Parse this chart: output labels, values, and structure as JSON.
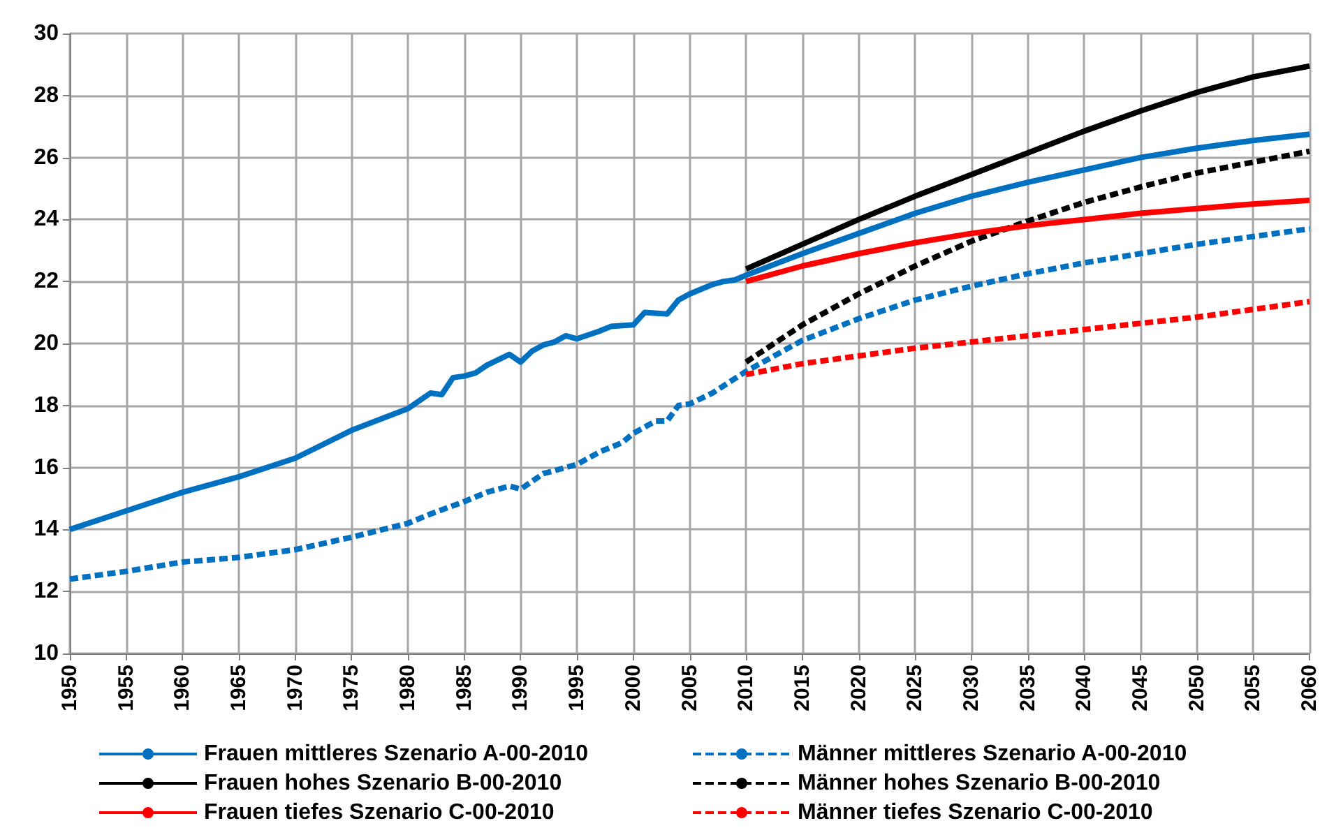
{
  "chart_data": {
    "type": "line",
    "xlim": [
      1950,
      2060
    ],
    "xticks": [
      1950,
      1955,
      1960,
      1965,
      1970,
      1975,
      1980,
      1985,
      1990,
      1995,
      2000,
      2005,
      2010,
      2015,
      2020,
      2025,
      2030,
      2035,
      2040,
      2045,
      2050,
      2055,
      2060
    ],
    "ylim": [
      10,
      30
    ],
    "yticks": [
      10,
      12,
      14,
      16,
      18,
      20,
      22,
      24,
      26,
      28,
      30
    ],
    "grid": true,
    "legend": "bottom",
    "marker": "none",
    "series": [
      {
        "name": "Frauen mittleres Szenario A-00-2010",
        "color": "#0070c0",
        "line_style": "solid",
        "x": [
          1950,
          1955,
          1960,
          1965,
          1970,
          1975,
          1980,
          1982,
          1983,
          1984,
          1985,
          1986,
          1987,
          1989,
          1990,
          1991,
          1992,
          1993,
          1994,
          1995,
          1997,
          1998,
          2000,
          2001,
          2003,
          2004,
          2005,
          2007,
          2008,
          2009,
          2010,
          2015,
          2020,
          2025,
          2030,
          2035,
          2040,
          2045,
          2050,
          2055,
          2060
        ],
        "values": [
          14.0,
          14.6,
          15.2,
          15.7,
          16.3,
          17.2,
          17.9,
          18.4,
          18.35,
          18.9,
          18.95,
          19.05,
          19.3,
          19.65,
          19.4,
          19.75,
          19.95,
          20.05,
          20.25,
          20.15,
          20.4,
          20.55,
          20.6,
          21.0,
          20.95,
          21.4,
          21.6,
          21.9,
          22.0,
          22.05,
          22.2,
          22.9,
          23.55,
          24.2,
          24.75,
          25.2,
          25.6,
          26.0,
          26.3,
          26.55,
          26.75
        ]
      },
      {
        "name": "Männer mittleres Szenario A-00-2010",
        "color": "#0070c0",
        "line_style": "dashed",
        "x": [
          1950,
          1955,
          1960,
          1965,
          1970,
          1975,
          1980,
          1982,
          1985,
          1987,
          1989,
          1990,
          1992,
          1995,
          1997,
          1999,
          2000,
          2002,
          2003,
          2004,
          2005,
          2007,
          2010,
          2015,
          2020,
          2025,
          2030,
          2035,
          2040,
          2045,
          2050,
          2055,
          2060
        ],
        "values": [
          12.4,
          12.65,
          12.95,
          13.1,
          13.35,
          13.75,
          14.2,
          14.5,
          14.9,
          15.2,
          15.4,
          15.3,
          15.8,
          16.1,
          16.5,
          16.8,
          17.1,
          17.5,
          17.5,
          18.0,
          18.05,
          18.4,
          19.1,
          20.1,
          20.8,
          21.4,
          21.85,
          22.25,
          22.6,
          22.9,
          23.2,
          23.45,
          23.7
        ]
      },
      {
        "name": "Frauen hohes Szenario B-00-2010",
        "color": "#000000",
        "line_style": "solid",
        "x": [
          2010,
          2015,
          2020,
          2025,
          2030,
          2035,
          2040,
          2045,
          2050,
          2055,
          2060
        ],
        "values": [
          22.4,
          23.2,
          24.0,
          24.75,
          25.45,
          26.15,
          26.85,
          27.5,
          28.1,
          28.6,
          28.95
        ]
      },
      {
        "name": "Männer hohes Szenario B-00-2010",
        "color": "#000000",
        "line_style": "dashed",
        "x": [
          2010,
          2015,
          2020,
          2025,
          2030,
          2035,
          2040,
          2045,
          2050,
          2055,
          2060
        ],
        "values": [
          19.4,
          20.6,
          21.6,
          22.5,
          23.3,
          23.95,
          24.55,
          25.05,
          25.5,
          25.85,
          26.2
        ]
      },
      {
        "name": "Frauen tiefes Szenario C-00-2010",
        "color": "#ff0000",
        "line_style": "solid",
        "x": [
          2010,
          2015,
          2020,
          2025,
          2030,
          2035,
          2040,
          2045,
          2050,
          2055,
          2060
        ],
        "values": [
          22.0,
          22.5,
          22.9,
          23.25,
          23.55,
          23.8,
          24.0,
          24.2,
          24.35,
          24.5,
          24.62
        ]
      },
      {
        "name": "Männer tiefes Szenario C-00-2010",
        "color": "#ff0000",
        "line_style": "dashed",
        "x": [
          2010,
          2015,
          2020,
          2025,
          2030,
          2035,
          2040,
          2045,
          2050,
          2055,
          2060
        ],
        "values": [
          19.0,
          19.35,
          19.6,
          19.85,
          20.05,
          20.25,
          20.45,
          20.65,
          20.85,
          21.1,
          21.35
        ]
      }
    ]
  }
}
